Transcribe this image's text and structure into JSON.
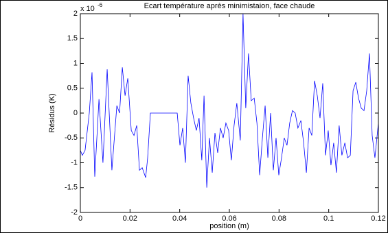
{
  "chart_data": {
    "type": "line",
    "title": "Ecart température après minimistaion, face chaude",
    "xlabel": "position (m)",
    "ylabel": "Résidus (K)",
    "multiplier": "x 10",
    "multiplier_exponent": "-6",
    "xlim": [
      0,
      0.12
    ],
    "xticks": [
      0,
      0.02,
      0.04,
      0.06,
      0.08,
      0.1,
      0.12
    ],
    "ylim": [
      -2,
      2
    ],
    "yticks": [
      -2,
      -1.5,
      -1,
      -0.5,
      0,
      0.5,
      1,
      1.5,
      2
    ],
    "grid": false,
    "series": [
      {
        "color": "#0000ff",
        "x": [
          0,
          0.0008,
          0.0019,
          0.0036,
          0.0047,
          0.0058,
          0.0075,
          0.0091,
          0.0108,
          0.0127,
          0.0147,
          0.0158,
          0.0169,
          0.018,
          0.0191,
          0.0205,
          0.0216,
          0.0227,
          0.0238,
          0.0249,
          0.0263,
          0.0271,
          0.0282,
          0.039,
          0.0401,
          0.0412,
          0.0423,
          0.0434,
          0.0445,
          0.0456,
          0.0467,
          0.0478,
          0.0489,
          0.0498,
          0.0509,
          0.052,
          0.0531,
          0.0542,
          0.0553,
          0.0564,
          0.0575,
          0.0586,
          0.0597,
          0.0608,
          0.0619,
          0.063,
          0.0644,
          0.0655,
          0.0666,
          0.0677,
          0.0688,
          0.07,
          0.0711,
          0.0722,
          0.0733,
          0.0744,
          0.0755,
          0.0766,
          0.0777,
          0.0788,
          0.0799,
          0.081,
          0.0821,
          0.0832,
          0.0843,
          0.0854,
          0.0865,
          0.0876,
          0.0888,
          0.0899,
          0.091,
          0.0921,
          0.0932,
          0.0943,
          0.0954,
          0.0965,
          0.0976,
          0.0987,
          0.0998,
          0.1009,
          0.102,
          0.1031,
          0.1042,
          0.1053,
          0.1065,
          0.1076,
          0.1087,
          0.1098,
          0.1109,
          0.112,
          0.1131,
          0.1142,
          0.1153,
          0.1164,
          0.1175,
          0.1186,
          0.12
        ],
        "values": [
          -0.75,
          -0.85,
          -0.75,
          0,
          0.82,
          -1.28,
          0.28,
          -1.0,
          0.88,
          -1.15,
          0.15,
          0,
          0.92,
          0.35,
          0.7,
          -0.35,
          -0.45,
          -0.25,
          -1.15,
          -1.1,
          -1.3,
          -0.9,
          0,
          0,
          -0.65,
          -0.3,
          -1.0,
          0.75,
          0.2,
          -0.1,
          -0.35,
          -0.1,
          -0.95,
          0.35,
          -1.5,
          -0.5,
          -1.2,
          -0.4,
          -0.8,
          -0.3,
          -0.5,
          -0.2,
          -0.35,
          -0.95,
          -0.25,
          0.2,
          -0.55,
          2.0,
          0.1,
          1.2,
          0.25,
          0.3,
          -0.2,
          -1.25,
          -0.5,
          0.15,
          -0.9,
          0,
          -1.15,
          -0.5,
          -1.25,
          -0.9,
          -0.5,
          -0.65,
          -0.2,
          0.05,
          0,
          -0.3,
          -0.15,
          -0.6,
          -1.2,
          -0.3,
          -0.45,
          0.65,
          0.35,
          -0.1,
          0.6,
          -0.85,
          -0.35,
          -1.05,
          -0.6,
          -1.2,
          -0.25,
          -0.85,
          -0.6,
          -0.9,
          -0.85,
          0.45,
          0.62,
          0.3,
          0.1,
          0.05,
          0.45,
          1.2,
          -0.45,
          -0.9,
          -0.2
        ]
      }
    ]
  }
}
